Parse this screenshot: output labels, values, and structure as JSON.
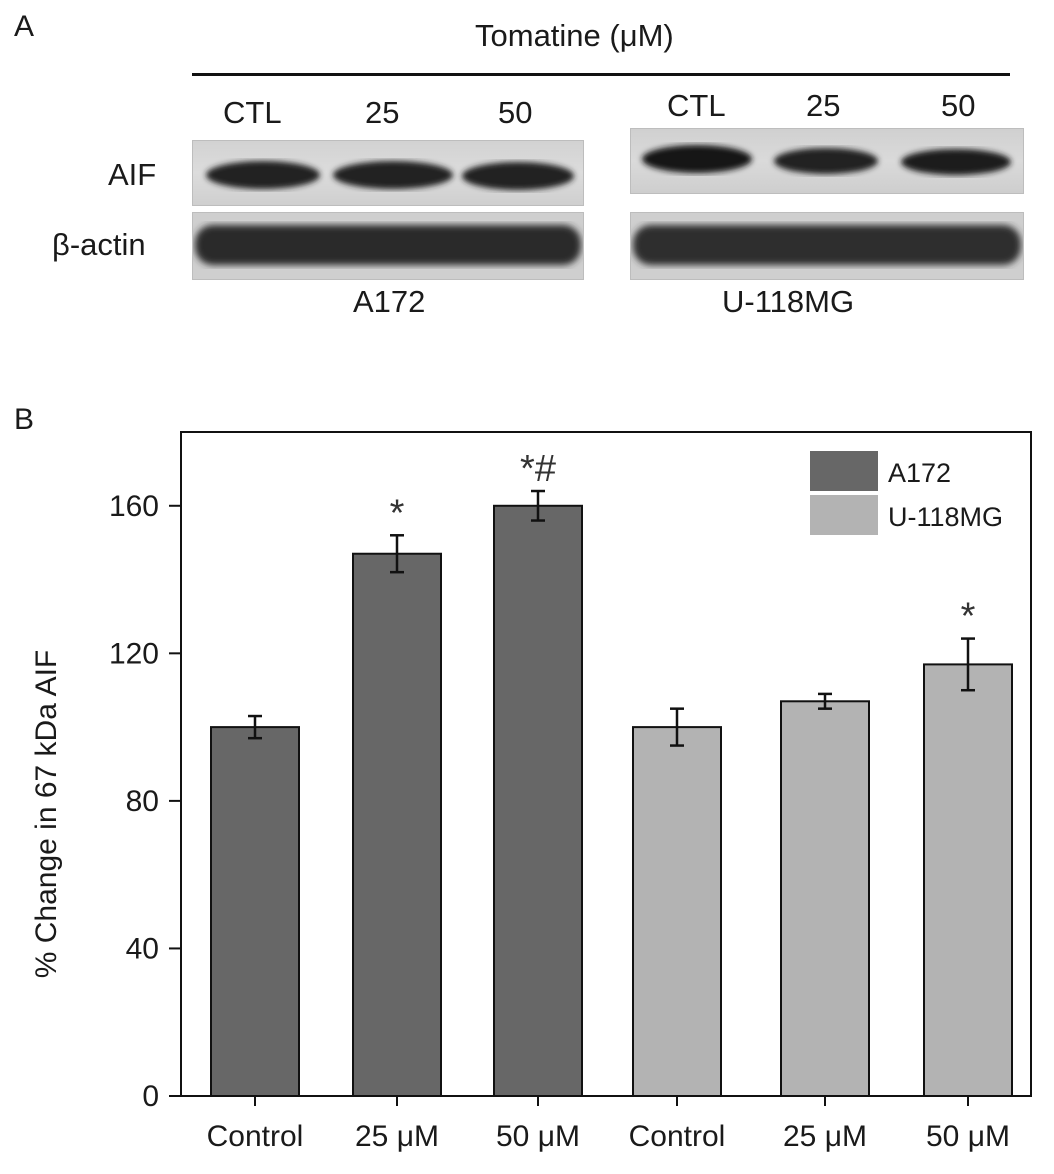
{
  "panel_a": {
    "letter": "A",
    "header": "Tomatine (μM)",
    "lane_labels_left": [
      "CTL",
      "25",
      "50"
    ],
    "lane_labels_right": [
      "CTL",
      "25",
      "50"
    ],
    "row_labels": [
      "AIF",
      "β-actin"
    ],
    "cell_lines": [
      "A172",
      "U-118MG"
    ]
  },
  "panel_b": {
    "letter": "B",
    "colors": {
      "A172": "#676767",
      "U-118MG": "#b3b3b3"
    }
  },
  "chart_data": {
    "type": "bar",
    "categories": [
      "Control",
      "25 μM",
      "50 μM",
      "Control",
      "25 μM",
      "50 μM"
    ],
    "values": [
      100,
      147,
      160,
      100,
      107,
      117
    ],
    "errors": [
      3,
      5,
      4,
      5,
      2,
      7
    ],
    "groups": [
      "A172",
      "A172",
      "A172",
      "U-118MG",
      "U-118MG",
      "U-118MG"
    ],
    "annotations": [
      "",
      "*",
      "*#",
      "",
      "",
      "*"
    ],
    "series": [
      {
        "name": "A172",
        "color": "#676767"
      },
      {
        "name": "U-118MG",
        "color": "#b3b3b3"
      }
    ],
    "ylabel": "% Change in 67 kDa AIF",
    "yticks": [
      0,
      40,
      80,
      120,
      160
    ],
    "ylim": [
      0,
      180
    ],
    "legend_position": "top-right",
    "grid": false
  }
}
